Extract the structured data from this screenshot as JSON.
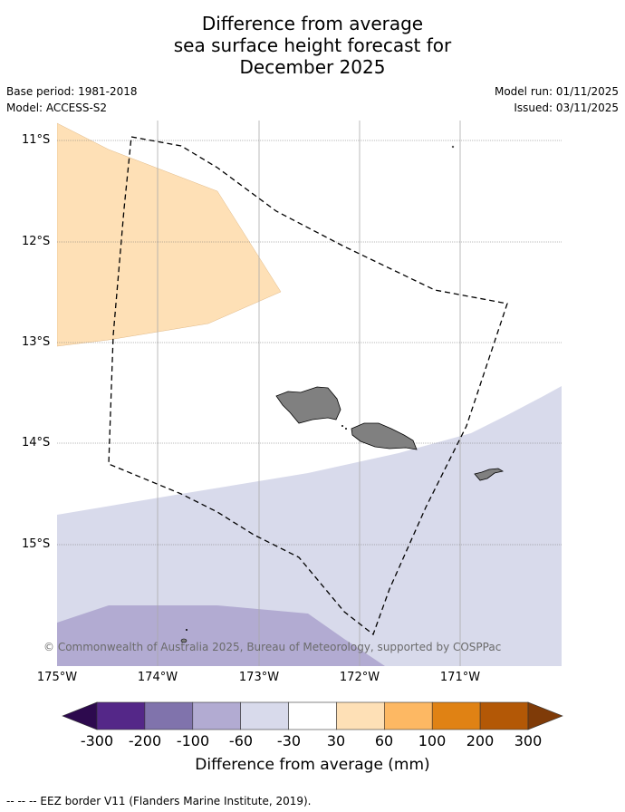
{
  "title": {
    "line1": "Difference from average",
    "line2": "sea surface height forecast for",
    "line3": "December 2025"
  },
  "meta": {
    "base_period": "Base period: 1981-2018",
    "model": "Model: ACCESS-S2",
    "model_run": "Model run: 01/11/2025",
    "issued": "Issued: 03/11/2025"
  },
  "map": {
    "lat_labels": [
      "11°S",
      "12°S",
      "13°S",
      "14°S",
      "15°S"
    ],
    "lon_labels": [
      "175°W",
      "174°W",
      "173°W",
      "172°W",
      "171°W"
    ],
    "copyright": "© Commonwealth of Australia 2025, Bureau of Meteorology, supported by COSPPac",
    "land_color": "#808080",
    "eez_border_style": "dashed"
  },
  "colorbar": {
    "title": "Difference from average (mm)",
    "tick_labels": [
      "-300",
      "-200",
      "-100",
      "-60",
      "-30",
      "30",
      "60",
      "100",
      "200",
      "300"
    ],
    "under_color": "#2d0a4e",
    "over_color": "#7f3b08",
    "colors": [
      "#542788",
      "#8073ac",
      "#b2abd2",
      "#d8daeb",
      "#ffffff",
      "#fee0b6",
      "#fdb863",
      "#e08214",
      "#b35806"
    ]
  },
  "footnote": "--  --  -- EEZ border V11 (Flanders Marine Institute, 2019)."
}
